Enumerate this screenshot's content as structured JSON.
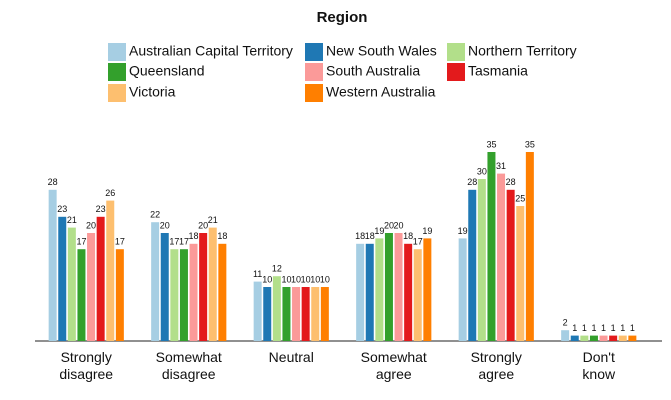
{
  "chart_data": {
    "type": "bar",
    "legend_title": "Region",
    "categories": [
      "Strongly disagree",
      "Somewhat disagree",
      "Neutral",
      "Somewhat agree",
      "Strongly agree",
      "Don't know"
    ],
    "series": [
      {
        "name": "Australian Capital Territory",
        "color": "#a6cee3",
        "values": [
          28,
          22,
          11,
          18,
          19,
          2
        ]
      },
      {
        "name": "New South Wales",
        "color": "#1f78b4",
        "values": [
          23,
          20,
          10,
          18,
          28,
          1
        ]
      },
      {
        "name": "Northern Territory",
        "color": "#b2df8a",
        "values": [
          21,
          17,
          12,
          19,
          30,
          1
        ]
      },
      {
        "name": "Queensland",
        "color": "#33a02c",
        "values": [
          17,
          17,
          10,
          20,
          35,
          1
        ]
      },
      {
        "name": "South Australia",
        "color": "#fb9a99",
        "values": [
          20,
          18,
          10,
          20,
          31,
          1
        ]
      },
      {
        "name": "Tasmania",
        "color": "#e31a1c",
        "values": [
          23,
          20,
          10,
          18,
          28,
          1
        ]
      },
      {
        "name": "Victoria",
        "color": "#fdbf6f",
        "values": [
          26,
          21,
          10,
          17,
          25,
          1
        ]
      },
      {
        "name": "Western Australia",
        "color": "#ff7f00",
        "values": [
          17,
          18,
          10,
          19,
          35,
          1
        ]
      }
    ]
  }
}
